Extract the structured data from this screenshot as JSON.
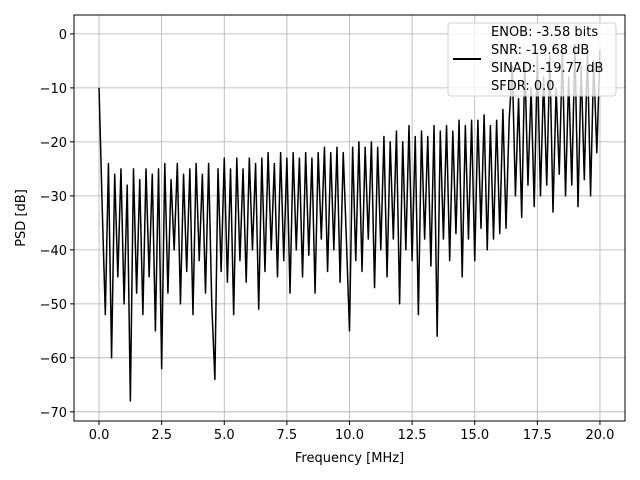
{
  "chart_data": {
    "type": "line",
    "xlabel": "Frequency [MHz]",
    "ylabel": "PSD [dB]",
    "xlim": [
      -1.0,
      21.0
    ],
    "ylim": [
      -71.7,
      3.5
    ],
    "xticks": [
      {
        "value": 0,
        "label": "0.0"
      },
      2.5,
      {
        "value": 5,
        "label": "5.0"
      },
      7.5,
      {
        "value": 10,
        "label": "10.0"
      },
      12.5,
      {
        "value": 15,
        "label": "15.0"
      },
      17.5,
      {
        "value": 20,
        "label": "20.0"
      }
    ],
    "yticks": [
      {
        "value": -70,
        "label": "−70"
      },
      {
        "value": -60,
        "label": "−60"
      },
      {
        "value": -50,
        "label": "−50"
      },
      {
        "value": -40,
        "label": "−40"
      },
      {
        "value": -30,
        "label": "−30"
      },
      {
        "value": -20,
        "label": "−20"
      },
      {
        "value": -10,
        "label": "−10"
      },
      0
    ],
    "grid": true,
    "legend": "upper right",
    "x": [
      0,
      0.125,
      0.25,
      0.375,
      0.5,
      0.625,
      0.75,
      0.875,
      1,
      1.125,
      1.25,
      1.375,
      1.5,
      1.625,
      1.75,
      1.875,
      2,
      2.125,
      2.25,
      2.375,
      2.5,
      2.625,
      2.75,
      2.875,
      3,
      3.125,
      3.25,
      3.375,
      3.5,
      3.625,
      3.75,
      3.875,
      4,
      4.125,
      4.25,
      4.375,
      4.5,
      4.625,
      4.75,
      4.875,
      5,
      5.125,
      5.25,
      5.375,
      5.5,
      5.625,
      5.75,
      5.875,
      6,
      6.125,
      6.25,
      6.375,
      6.5,
      6.625,
      6.75,
      6.875,
      7,
      7.125,
      7.25,
      7.375,
      7.5,
      7.625,
      7.75,
      7.875,
      8,
      8.125,
      8.25,
      8.375,
      8.5,
      8.625,
      8.75,
      8.875,
      9,
      9.125,
      9.25,
      9.375,
      9.5,
      9.625,
      9.75,
      9.875,
      10,
      10.125,
      10.25,
      10.375,
      10.5,
      10.625,
      10.75,
      10.875,
      11,
      11.125,
      11.25,
      11.375,
      11.5,
      11.625,
      11.75,
      11.875,
      12,
      12.125,
      12.25,
      12.375,
      12.5,
      12.625,
      12.75,
      12.875,
      13,
      13.125,
      13.25,
      13.375,
      13.5,
      13.625,
      13.75,
      13.875,
      14,
      14.125,
      14.25,
      14.375,
      14.5,
      14.625,
      14.75,
      14.875,
      15,
      15.125,
      15.25,
      15.375,
      15.5,
      15.625,
      15.75,
      15.875,
      16,
      16.125,
      16.25,
      16.375,
      16.5,
      16.625,
      16.75,
      16.875,
      17,
      17.125,
      17.25,
      17.375,
      17.5,
      17.625,
      17.75,
      17.875,
      18,
      18.125,
      18.25,
      18.375,
      18.5,
      18.625,
      18.75,
      18.875,
      19,
      19.125,
      19.25,
      19.375,
      19.5,
      19.625,
      19.75,
      19.875,
      20
    ],
    "series": [
      {
        "name": "ENOB: -3.58 bits\nSNR: -19.68 dB\nSINAD: -19.77 dB\nSFDR: 0.0",
        "color": "#000000",
        "values": [
          -10,
          -32,
          -52,
          -24,
          -60,
          -26,
          -45,
          -25,
          -50,
          -28,
          -68,
          -25,
          -48,
          -27,
          -52,
          -25,
          -45,
          -26,
          -55,
          -25,
          -62,
          -24,
          -48,
          -27,
          -40,
          -24,
          -50,
          -26,
          -44,
          -25,
          -52,
          -24,
          -42,
          -26,
          -48,
          -24,
          -50,
          -64,
          -25,
          -44,
          -23,
          -46,
          -25,
          -52,
          -23,
          -42,
          -25,
          -46,
          -23,
          -40,
          -24,
          -51,
          -23,
          -44,
          -22,
          -40,
          -24,
          -45,
          -22,
          -42,
          -23,
          -48,
          -22,
          -40,
          -23,
          -45,
          -22,
          -41,
          -23,
          -48,
          -22,
          -38,
          -21,
          -44,
          -22,
          -40,
          -21,
          -46,
          -22,
          -38,
          -55,
          -21,
          -42,
          -20,
          -44,
          -21,
          -38,
          -20,
          -47,
          -21,
          -40,
          -19,
          -45,
          -20,
          -38,
          -18,
          -50,
          -20,
          -40,
          -17,
          -42,
          -19,
          -52,
          -18,
          -38,
          -19,
          -43,
          -17,
          -56,
          -18,
          -38,
          -17,
          -42,
          -18,
          -37,
          -16,
          -45,
          -17,
          -38,
          -16,
          -42,
          -16,
          -36,
          -15,
          -40,
          -17,
          -38,
          -16,
          -37,
          -14,
          -36,
          -16,
          -6,
          -30,
          -12,
          -34,
          -5,
          -28,
          -10,
          -32,
          -4,
          -30,
          -8,
          -28,
          -4,
          -33,
          -10,
          -26,
          -3,
          -30,
          -8,
          -28,
          -2,
          -32,
          -6,
          -27,
          -3,
          -30,
          -5,
          -22,
          -3
        ]
      }
    ]
  }
}
